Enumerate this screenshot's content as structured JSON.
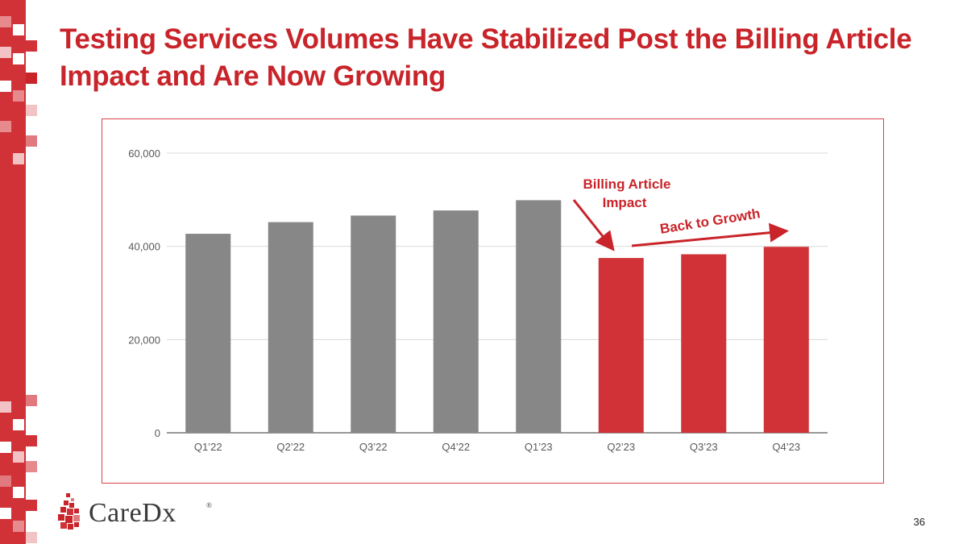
{
  "slide": {
    "title_line1": "Testing Services Volumes Have Stabilized Post the Billing Article",
    "title_line2": "Impact and Are Now Growing",
    "page_number": "36",
    "brand_colors": {
      "primary": "#c8242a",
      "bar_gray": "#878787",
      "bar_red": "#d13237"
    }
  },
  "logo": {
    "text": "CareDx",
    "mark": "®",
    "icon": "caredx-droplet-icon"
  },
  "chart_data": {
    "type": "bar",
    "title": "",
    "xlabel": "",
    "ylabel": "",
    "categories": [
      "Q1’22",
      "Q2’22",
      "Q3’22",
      "Q4’22",
      "Q1’23",
      "Q2’23",
      "Q3’23",
      "Q4’23"
    ],
    "values": [
      42700,
      45200,
      46600,
      47700,
      49900,
      37500,
      38300,
      39900
    ],
    "ylim": [
      0,
      60000
    ],
    "yticks": [
      0,
      20000,
      40000,
      60000
    ],
    "ytick_labels": [
      "0",
      "20,000",
      "40,000",
      "60,000"
    ],
    "grid": true,
    "bar_groups": [
      "pre",
      "pre",
      "pre",
      "pre",
      "pre",
      "post",
      "post",
      "post"
    ],
    "annotations": {
      "impact_line1": "Billing Article",
      "impact_line2": "Impact",
      "growth": "Back to Growth"
    }
  }
}
